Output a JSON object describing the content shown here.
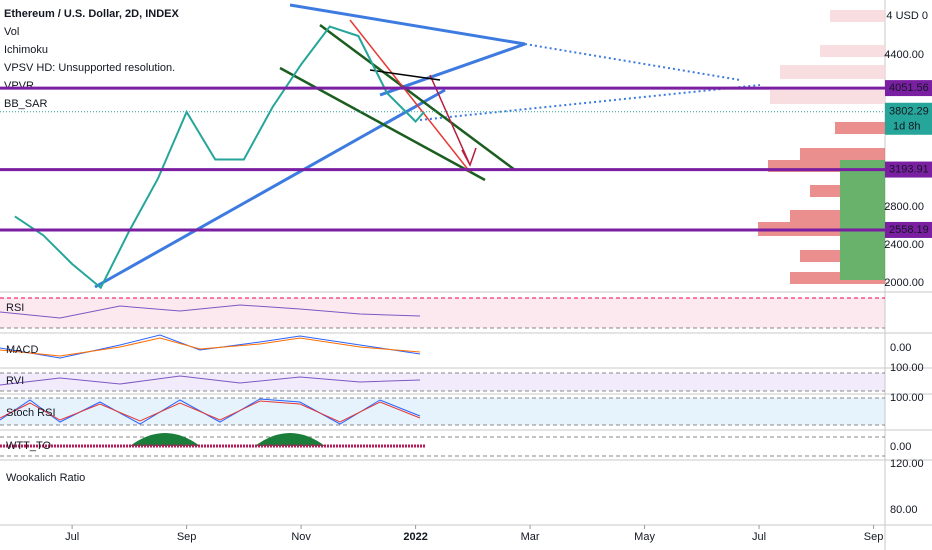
{
  "header": {
    "title": "Ethereum / U.S. Dollar, 2D, INDEX",
    "indicators": [
      "Vol",
      "Ichimoku",
      "VPSV HD: Unsupported resolution.",
      "VPVR",
      "BB_SAR"
    ]
  },
  "chart_data": {
    "type": "line",
    "color": "#26a69a",
    "x": [
      -1.0,
      -0.5,
      0,
      0.5,
      1.0,
      1.5,
      2.0,
      2.5,
      3.0,
      3.5,
      4.0,
      4.5,
      5.0,
      5.5,
      6.0,
      6.15
    ],
    "values": [
      2700,
      2500,
      2200,
      1950,
      2550,
      3100,
      3800,
      3300,
      3300,
      3850,
      4300,
      4700,
      4600,
      4000,
      3700,
      3802.29
    ],
    "xlim": [
      -1.26,
      14.2
    ],
    "xticks": [
      {
        "value": 0,
        "label": "Jul"
      },
      {
        "value": 2,
        "label": "Sep"
      },
      {
        "value": 4,
        "label": "Nov"
      },
      {
        "value": 6,
        "label": "2022"
      },
      {
        "value": 8,
        "label": "Mar"
      },
      {
        "value": 10,
        "label": "May"
      },
      {
        "value": 12,
        "label": "Jul"
      },
      {
        "value": 14,
        "label": "Sep"
      }
    ],
    "ylim": [
      1926,
      4979
    ],
    "yticks": [
      {
        "value": 4400,
        "label": "4400.00"
      },
      {
        "value": 2800,
        "label": "2800.00"
      },
      {
        "value": 2400,
        "label": "2400.00"
      },
      {
        "value": 2000,
        "label": "2000.00"
      }
    ],
    "currency_label": "4 USD 0",
    "levels": [
      {
        "value": 4051.56,
        "label": "4051.56"
      },
      {
        "value": 3193.91,
        "label": "3193.91"
      },
      {
        "value": 2558.19,
        "label": "2558.19"
      }
    ],
    "last_price": {
      "value": 3802.29,
      "label": "3802.29",
      "countdown": "1d 8h"
    }
  },
  "panes": [
    {
      "name": "RSI",
      "labels": []
    },
    {
      "name": "MACD",
      "labels": [
        "0.00"
      ]
    },
    {
      "name": "RVI",
      "labels": [
        "100.00"
      ]
    },
    {
      "name": "Stoch RSI",
      "labels": [
        "100.00"
      ]
    },
    {
      "name": "WTT_TO",
      "labels": [
        "0.00"
      ]
    },
    {
      "name": "Wookalich Ratio",
      "labels": [
        "120.00",
        "80.00"
      ]
    }
  ]
}
